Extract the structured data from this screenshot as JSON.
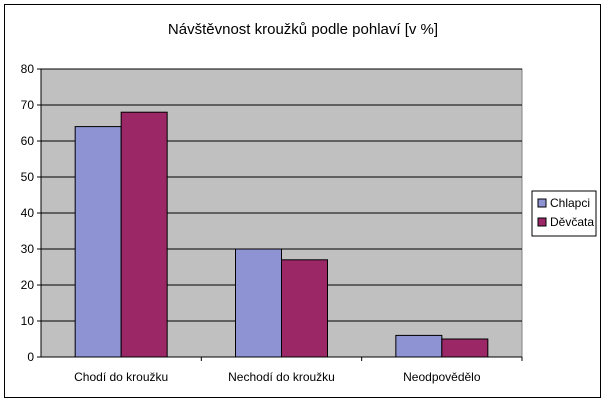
{
  "chart_data": {
    "type": "bar",
    "title": "Návštěvnost kroužků podle pohlaví [v %]",
    "xlabel": "",
    "ylabel": "",
    "categories": [
      "Chodí do kroužku",
      "Nechodí do kroužku",
      "Neodpovědělo"
    ],
    "series": [
      {
        "name": "Chlapci",
        "values": [
          64,
          30,
          6
        ],
        "color": "#8E93D3"
      },
      {
        "name": "Děvčata",
        "values": [
          68,
          27,
          5
        ],
        "color": "#9B2767"
      }
    ],
    "ylim": [
      0,
      80
    ],
    "yticks": [
      "0",
      "10",
      "20",
      "30",
      "40",
      "50",
      "60",
      "70",
      "80"
    ],
    "grid": true,
    "legend_position": "right",
    "plot_background": "#C0C0C0"
  }
}
